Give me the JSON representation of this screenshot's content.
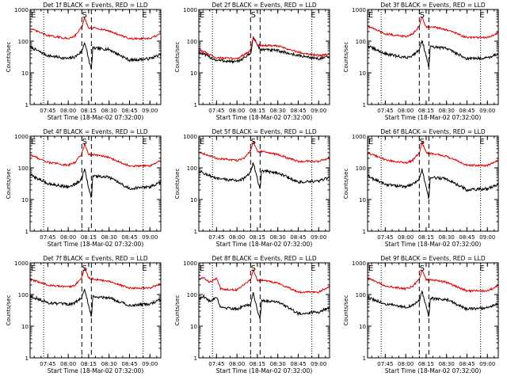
{
  "figure": {
    "xlabel": "Start Time (18-Mar-02 07:32:00)",
    "ylabel": "Counts/sec",
    "xtick_labels": [
      "07:45",
      "08:00",
      "08:15",
      "08:30",
      "08:45",
      "09:00"
    ],
    "ytick_labels": [
      "1",
      "10",
      "100",
      "1000"
    ],
    "marker_labels": {
      "eclipse_start": "E",
      "saa": "S",
      "eclipse_end": "E"
    },
    "colors": {
      "events": "#000000",
      "lld": "#e00000"
    }
  },
  "chart_data": [
    {
      "type": "line",
      "title": "Det 1f BLACK = Events, RED = LLD",
      "xlabel": "Start Time (18-Mar-02 07:32:00)",
      "ylabel": "Counts/sec",
      "y_scale": "log",
      "ylim": [
        1,
        1000
      ],
      "xlim": [
        "07:32",
        "09:08"
      ],
      "xticks": [
        "07:45",
        "08:00",
        "08:15",
        "08:30",
        "08:45",
        "09:00"
      ],
      "dotted_lines": [
        "07:42",
        "08:55"
      ],
      "dashed_lines": [
        "08:10",
        "08:17"
      ],
      "marker_labels": {
        "E_left": "07:32",
        "S": "08:12",
        "E_right": "08:56"
      },
      "series": [
        {
          "name": "Events",
          "color": "#000000",
          "times": [
            "07:32",
            "07:45",
            "08:00",
            "08:05",
            "08:10",
            "08:12",
            "08:17",
            "08:18",
            "08:30",
            "08:45",
            "09:00",
            "09:08"
          ],
          "values": [
            65,
            35,
            28,
            32,
            48,
            95,
            12,
            60,
            55,
            25,
            28,
            38
          ]
        },
        {
          "name": "LLD",
          "color": "#e00000",
          "times": [
            "07:32",
            "07:45",
            "08:00",
            "08:05",
            "08:10",
            "08:12",
            "08:15",
            "08:20",
            "08:30",
            "08:45",
            "09:00",
            "09:08"
          ],
          "values": [
            250,
            150,
            120,
            150,
            280,
            550,
            250,
            260,
            210,
            120,
            120,
            170
          ]
        }
      ]
    },
    {
      "type": "line",
      "title": "Det 2f BLACK = Events, RED = LLD",
      "xlabel": "Start Time (18-Mar-02 07:32:00)",
      "ylabel": "Counts/sec",
      "y_scale": "log",
      "ylim": [
        1,
        1000
      ],
      "xlim": [
        "07:32",
        "09:08"
      ],
      "xticks": [
        "07:45",
        "08:00",
        "08:15",
        "08:30",
        "08:45",
        "09:00"
      ],
      "dotted_lines": [
        "07:42",
        "08:55"
      ],
      "dashed_lines": [
        "08:10",
        "08:17"
      ],
      "marker_labels": {
        "E_left": "07:32",
        "S": "08:12",
        "E_right": "08:56"
      },
      "series": [
        {
          "name": "Events",
          "color": "#000000",
          "times": [
            "07:32",
            "07:45",
            "08:00",
            "08:10",
            "08:12",
            "08:17",
            "08:30",
            "08:45",
            "09:00",
            "09:08"
          ],
          "values": [
            45,
            25,
            22,
            40,
            130,
            55,
            50,
            35,
            28,
            32
          ]
        },
        {
          "name": "LLD",
          "color": "#e00000",
          "times": [
            "07:32",
            "07:45",
            "08:00",
            "08:10",
            "08:12",
            "08:15",
            "08:30",
            "08:45",
            "09:00",
            "09:08"
          ],
          "values": [
            55,
            30,
            28,
            50,
            140,
            75,
            70,
            45,
            35,
            38
          ]
        }
      ]
    },
    {
      "type": "line",
      "title": "Det 3f BLACK = Events, RED = LLD",
      "xlabel": "Start Time (18-Mar-02 07:32:00)",
      "ylabel": "Counts/sec",
      "y_scale": "log",
      "ylim": [
        1,
        1000
      ],
      "xlim": [
        "07:32",
        "09:08"
      ],
      "xticks": [
        "07:45",
        "08:00",
        "08:15",
        "08:30",
        "08:45",
        "09:00"
      ],
      "dotted_lines": [
        "07:42",
        "08:55"
      ],
      "dashed_lines": [
        "08:10",
        "08:17"
      ],
      "marker_labels": {
        "E_left": "07:32",
        "S": "08:12",
        "E_right": "08:56"
      },
      "series": [
        {
          "name": "Events",
          "color": "#000000",
          "times": [
            "07:32",
            "07:45",
            "08:00",
            "08:05",
            "08:10",
            "08:12",
            "08:17",
            "08:18",
            "08:30",
            "08:45",
            "09:00",
            "09:08"
          ],
          "values": [
            70,
            40,
            30,
            35,
            55,
            110,
            15,
            65,
            60,
            28,
            30,
            40
          ]
        },
        {
          "name": "LLD",
          "color": "#e00000",
          "times": [
            "07:32",
            "07:45",
            "08:00",
            "08:05",
            "08:10",
            "08:12",
            "08:15",
            "08:20",
            "08:30",
            "08:45",
            "09:00",
            "09:08"
          ],
          "values": [
            300,
            170,
            140,
            170,
            300,
            600,
            280,
            280,
            230,
            130,
            130,
            180
          ]
        }
      ]
    },
    {
      "type": "line",
      "title": "Det 4f BLACK = Events, RED = LLD",
      "xlabel": "Start Time (18-Mar-02 07:32:00)",
      "ylabel": "Counts/sec",
      "y_scale": "log",
      "ylim": [
        1,
        1000
      ],
      "xlim": [
        "07:32",
        "09:08"
      ],
      "xticks": [
        "07:45",
        "08:00",
        "08:15",
        "08:30",
        "08:45",
        "09:00"
      ],
      "dotted_lines": [
        "07:42",
        "08:55"
      ],
      "dashed_lines": [
        "08:10",
        "08:17"
      ],
      "marker_labels": {
        "E_left": "07:32",
        "S": "08:12",
        "E_right": "08:56"
      },
      "series": [
        {
          "name": "Events",
          "color": "#000000",
          "times": [
            "07:32",
            "07:45",
            "08:00",
            "08:05",
            "08:10",
            "08:12",
            "08:17",
            "08:18",
            "08:30",
            "08:45",
            "09:00",
            "09:08"
          ],
          "values": [
            60,
            32,
            25,
            30,
            45,
            90,
            10,
            55,
            50,
            22,
            25,
            35
          ]
        },
        {
          "name": "LLD",
          "color": "#e00000",
          "times": [
            "07:32",
            "07:45",
            "08:00",
            "08:05",
            "08:10",
            "08:12",
            "08:15",
            "08:20",
            "08:30",
            "08:45",
            "09:00",
            "09:08"
          ],
          "values": [
            260,
            150,
            120,
            150,
            280,
            580,
            260,
            260,
            210,
            115,
            115,
            170
          ]
        }
      ]
    },
    {
      "type": "line",
      "title": "Det 5f BLACK = Events, RED = LLD",
      "xlabel": "Start Time (18-Mar-02 07:32:00)",
      "ylabel": "Counts/sec",
      "y_scale": "log",
      "ylim": [
        1,
        1000
      ],
      "xlim": [
        "07:32",
        "09:08"
      ],
      "xticks": [
        "07:45",
        "08:00",
        "08:15",
        "08:30",
        "08:45",
        "09:00"
      ],
      "dotted_lines": [
        "07:42",
        "08:55"
      ],
      "dashed_lines": [
        "08:10",
        "08:17"
      ],
      "marker_labels": {
        "E_left": "07:32",
        "S": "08:12",
        "E_right": "08:56"
      },
      "series": [
        {
          "name": "Events",
          "color": "#000000",
          "times": [
            "07:32",
            "07:45",
            "08:00",
            "08:05",
            "08:10",
            "08:12",
            "08:17",
            "08:18",
            "08:30",
            "08:45",
            "09:00",
            "09:08"
          ],
          "values": [
            80,
            45,
            40,
            45,
            70,
            150,
            20,
            80,
            70,
            35,
            38,
            50
          ]
        },
        {
          "name": "LLD",
          "color": "#e00000",
          "times": [
            "07:32",
            "07:45",
            "08:00",
            "08:05",
            "08:10",
            "08:12",
            "08:15",
            "08:20",
            "08:30",
            "08:45",
            "09:00",
            "09:08"
          ],
          "values": [
            320,
            200,
            170,
            200,
            350,
            700,
            330,
            320,
            260,
            160,
            160,
            210
          ]
        }
      ]
    },
    {
      "type": "line",
      "title": "Det 6f BLACK = Events, RED = LLD",
      "xlabel": "Start Time (18-Mar-02 07:32:00)",
      "ylabel": "Counts/sec",
      "y_scale": "log",
      "ylim": [
        1,
        1000
      ],
      "xlim": [
        "07:32",
        "09:08"
      ],
      "xticks": [
        "07:45",
        "08:00",
        "08:15",
        "08:30",
        "08:45",
        "09:00"
      ],
      "dotted_lines": [
        "07:42",
        "08:55"
      ],
      "dashed_lines": [
        "08:10",
        "08:17"
      ],
      "marker_labels": {
        "E_left": "07:32",
        "S": "08:12",
        "E_right": "08:56"
      },
      "series": [
        {
          "name": "Events",
          "color": "#000000",
          "times": [
            "07:32",
            "07:45",
            "08:00",
            "08:05",
            "08:10",
            "08:12",
            "08:17",
            "08:18",
            "08:30",
            "08:45",
            "09:00",
            "09:08"
          ],
          "values": [
            55,
            30,
            25,
            30,
            45,
            90,
            10,
            50,
            45,
            20,
            22,
            30
          ]
        },
        {
          "name": "LLD",
          "color": "#e00000",
          "times": [
            "07:32",
            "07:45",
            "08:00",
            "08:05",
            "08:10",
            "08:12",
            "08:15",
            "08:20",
            "08:30",
            "08:45",
            "09:00",
            "09:08"
          ],
          "values": [
            300,
            180,
            140,
            170,
            300,
            650,
            300,
            280,
            230,
            120,
            120,
            170
          ]
        }
      ]
    },
    {
      "type": "line",
      "title": "Det 7f BLACK = Events, RED = LLD",
      "xlabel": "Start Time (18-Mar-02 07:32:00)",
      "ylabel": "Counts/sec",
      "y_scale": "log",
      "ylim": [
        1,
        1000
      ],
      "xlim": [
        "07:32",
        "09:08"
      ],
      "xticks": [
        "07:45",
        "08:00",
        "08:15",
        "08:30",
        "08:45",
        "09:00"
      ],
      "dotted_lines": [
        "07:42",
        "08:55"
      ],
      "dashed_lines": [
        "08:10",
        "08:17"
      ],
      "marker_labels": {
        "E_left": "07:32",
        "S": "08:12",
        "E_right": "08:56"
      },
      "series": [
        {
          "name": "Events",
          "color": "#000000",
          "times": [
            "07:32",
            "07:45",
            "08:00",
            "08:05",
            "08:10",
            "08:12",
            "08:17",
            "08:18",
            "08:30",
            "08:45",
            "09:00",
            "09:08"
          ],
          "values": [
            90,
            55,
            48,
            55,
            80,
            150,
            20,
            85,
            80,
            45,
            50,
            70
          ]
        },
        {
          "name": "LLD",
          "color": "#e00000",
          "times": [
            "07:32",
            "07:45",
            "08:00",
            "08:05",
            "08:10",
            "08:12",
            "08:15",
            "08:20",
            "08:30",
            "08:45",
            "09:00",
            "09:08"
          ],
          "values": [
            300,
            200,
            170,
            200,
            340,
            700,
            330,
            300,
            260,
            160,
            160,
            220
          ]
        }
      ]
    },
    {
      "type": "line",
      "title": "Det 8f BLACK = Events, RED = LLD",
      "xlabel": "Start Time (18-Mar-02 07:32:00)",
      "ylabel": "Counts/sec",
      "y_scale": "log",
      "ylim": [
        1,
        1000
      ],
      "xlim": [
        "07:32",
        "09:08"
      ],
      "xticks": [
        "07:45",
        "08:00",
        "08:15",
        "08:30",
        "08:45",
        "09:00"
      ],
      "dotted_lines": [
        "07:42",
        "08:55"
      ],
      "dashed_lines": [
        "08:10",
        "08:17"
      ],
      "marker_labels": {
        "E_left": "07:32",
        "S": "08:12",
        "E_right": "08:56"
      },
      "series": [
        {
          "name": "Events",
          "color": "#000000",
          "times": [
            "07:32",
            "07:35",
            "07:40",
            "07:45",
            "07:48",
            "08:00",
            "08:10",
            "08:12",
            "08:17",
            "08:18",
            "08:30",
            "08:45",
            "09:00",
            "09:08"
          ],
          "values": [
            70,
            90,
            60,
            85,
            40,
            35,
            50,
            110,
            15,
            65,
            60,
            25,
            28,
            40
          ]
        },
        {
          "name": "LLD",
          "color": "#e00000",
          "times": [
            "07:32",
            "07:35",
            "07:40",
            "07:45",
            "07:48",
            "08:00",
            "08:10",
            "08:12",
            "08:15",
            "08:20",
            "08:30",
            "08:45",
            "09:00",
            "09:08"
          ],
          "values": [
            300,
            350,
            240,
            330,
            150,
            140,
            300,
            600,
            280,
            280,
            230,
            120,
            120,
            180
          ]
        }
      ]
    },
    {
      "type": "line",
      "title": "Det 9f BLACK = Events, RED = LLD",
      "xlabel": "Start Time (18-Mar-02 07:32:00)",
      "ylabel": "Counts/sec",
      "y_scale": "log",
      "ylim": [
        1,
        1000
      ],
      "xlim": [
        "07:32",
        "09:08"
      ],
      "xticks": [
        "07:45",
        "08:00",
        "08:15",
        "08:30",
        "08:45",
        "09:00"
      ],
      "dotted_lines": [
        "07:42",
        "08:55"
      ],
      "dashed_lines": [
        "08:10",
        "08:17"
      ],
      "marker_labels": {
        "E_left": "07:32",
        "S": "08:12",
        "E_right": "08:56"
      },
      "series": [
        {
          "name": "Events",
          "color": "#000000",
          "times": [
            "07:32",
            "07:45",
            "08:00",
            "08:05",
            "08:10",
            "08:12",
            "08:17",
            "08:18",
            "08:30",
            "08:45",
            "09:00",
            "09:08"
          ],
          "values": [
            80,
            50,
            40,
            45,
            65,
            130,
            18,
            75,
            70,
            35,
            38,
            50
          ]
        },
        {
          "name": "LLD",
          "color": "#e00000",
          "times": [
            "07:32",
            "07:45",
            "08:00",
            "08:05",
            "08:10",
            "08:12",
            "08:15",
            "08:20",
            "08:30",
            "08:45",
            "09:00",
            "09:08"
          ],
          "values": [
            330,
            190,
            150,
            180,
            300,
            600,
            290,
            290,
            240,
            130,
            130,
            190
          ]
        }
      ]
    }
  ]
}
